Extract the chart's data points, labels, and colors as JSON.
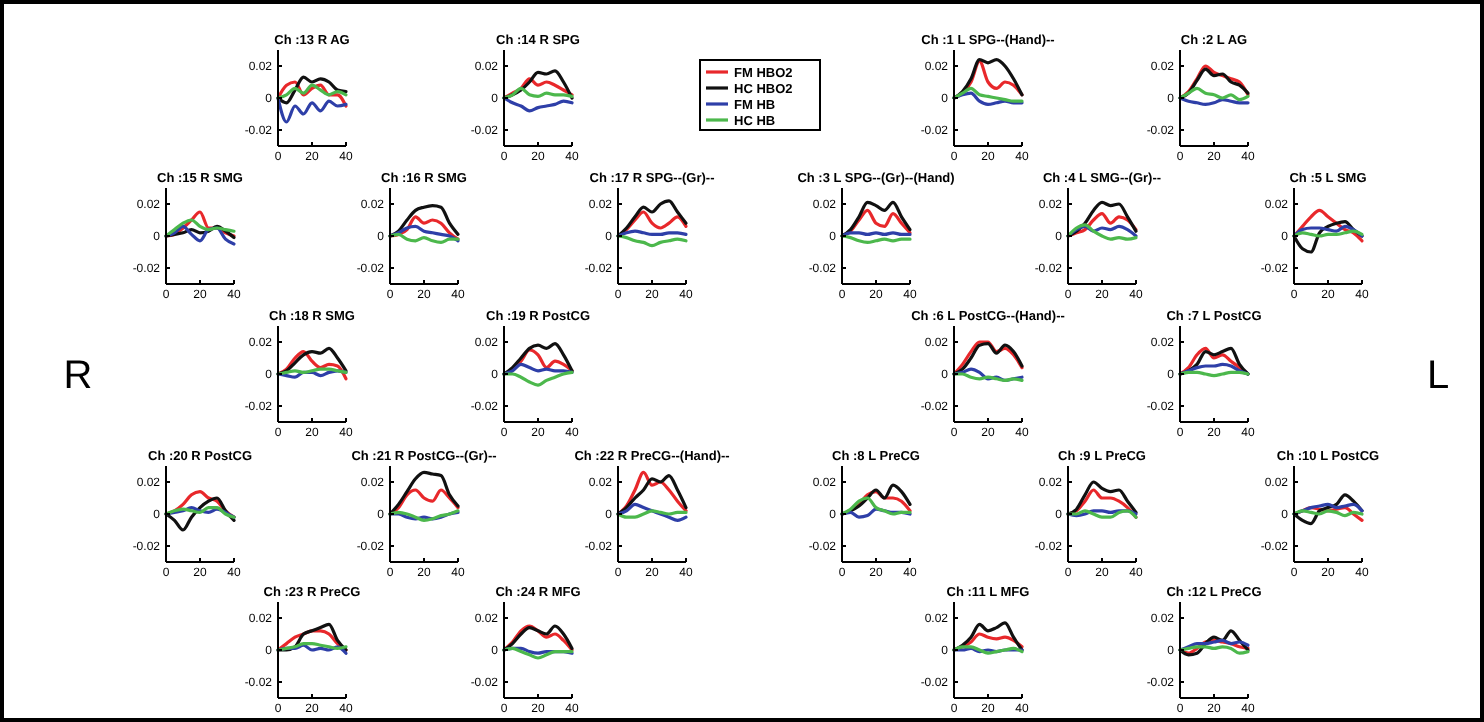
{
  "chart_data": [
    {
      "type": "line",
      "title": "Ch :13 R AG",
      "x": [
        0,
        5,
        10,
        15,
        20,
        25,
        30,
        35,
        40
      ],
      "xlim": [
        0,
        40
      ],
      "xticks": [
        0,
        20,
        40
      ],
      "ylim": [
        -0.03,
        0.03
      ],
      "yticks": [
        -0.02,
        0,
        0.02
      ],
      "series": [
        {
          "color": "#e8282b",
          "values": [
            0,
            0.008,
            0.01,
            0.002,
            0.006,
            0.008,
            0.002,
            0.002,
            -0.005
          ]
        },
        {
          "color": "#111111",
          "values": [
            0,
            -0.003,
            0.005,
            0.013,
            0.01,
            0.012,
            0.01,
            0.005,
            0.004
          ]
        },
        {
          "color": "#2e3fa8",
          "values": [
            0,
            -0.015,
            -0.005,
            -0.01,
            -0.003,
            -0.008,
            -0.002,
            -0.005,
            -0.004
          ]
        },
        {
          "color": "#4cb84c",
          "values": [
            0,
            0.002,
            0.006,
            0.003,
            0.008,
            0.005,
            0.002,
            0.004,
            0.002
          ]
        }
      ]
    },
    {
      "type": "line",
      "title": "Ch :14 R SPG",
      "x": [
        0,
        5,
        10,
        15,
        20,
        25,
        30,
        35,
        40
      ],
      "xlim": [
        0,
        40
      ],
      "xticks": [
        0,
        20,
        40
      ],
      "ylim": [
        -0.03,
        0.03
      ],
      "yticks": [
        -0.02,
        0,
        0.02
      ],
      "legend": "right",
      "series": [
        {
          "name": "FM HBO2",
          "color": "#e8282b",
          "values": [
            0,
            0.003,
            0.006,
            0.012,
            0.008,
            0.01,
            0.008,
            0.005,
            0.002
          ]
        },
        {
          "name": "HC HBO2",
          "color": "#111111",
          "values": [
            0,
            0.002,
            0.005,
            0.01,
            0.016,
            0.015,
            0.017,
            0.01,
            0
          ]
        },
        {
          "name": "FM HB",
          "color": "#2e3fa8",
          "values": [
            0,
            -0.003,
            -0.005,
            -0.008,
            -0.006,
            -0.005,
            -0.004,
            -0.002,
            -0.003
          ]
        },
        {
          "name": "HC HB",
          "color": "#4cb84c",
          "values": [
            0,
            0.002,
            0.006,
            0.002,
            0.001,
            0.003,
            0.002,
            0.002,
            0.001
          ]
        }
      ]
    },
    {
      "type": "line",
      "title": "Ch :1 L SPG--(Hand)--",
      "x": [
        0,
        5,
        10,
        15,
        20,
        25,
        30,
        35,
        40
      ],
      "xlim": [
        0,
        40
      ],
      "xticks": [
        0,
        20,
        40
      ],
      "ylim": [
        -0.03,
        0.03
      ],
      "yticks": [
        -0.02,
        0,
        0.02
      ],
      "series": [
        {
          "color": "#e8282b",
          "values": [
            0,
            0.003,
            0.01,
            0.023,
            0.01,
            0.006,
            0.01,
            0.008,
            0.002
          ]
        },
        {
          "color": "#111111",
          "values": [
            0,
            0.004,
            0.012,
            0.024,
            0.022,
            0.024,
            0.02,
            0.012,
            0.002
          ]
        },
        {
          "color": "#2e3fa8",
          "values": [
            0,
            0.002,
            0.003,
            -0.002,
            -0.004,
            -0.003,
            -0.002,
            -0.003,
            -0.003
          ]
        },
        {
          "color": "#4cb84c",
          "values": [
            0,
            0.003,
            0.006,
            0.002,
            0.001,
            0,
            -0.001,
            -0.002,
            -0.002
          ]
        }
      ]
    },
    {
      "type": "line",
      "title": "Ch :2 L AG",
      "x": [
        0,
        5,
        10,
        15,
        20,
        25,
        30,
        35,
        40
      ],
      "xlim": [
        0,
        40
      ],
      "xticks": [
        0,
        20,
        40
      ],
      "ylim": [
        -0.03,
        0.03
      ],
      "yticks": [
        -0.02,
        0,
        0.02
      ],
      "series": [
        {
          "color": "#e8282b",
          "values": [
            0,
            0.004,
            0.012,
            0.02,
            0.016,
            0.014,
            0.012,
            0.01,
            0.002
          ]
        },
        {
          "color": "#111111",
          "values": [
            0,
            0.003,
            0.011,
            0.018,
            0.014,
            0.015,
            0.01,
            0.008,
            0.003
          ]
        },
        {
          "color": "#2e3fa8",
          "values": [
            0,
            -0.002,
            -0.003,
            -0.004,
            -0.003,
            -0.001,
            -0.002,
            -0.003,
            -0.003
          ]
        },
        {
          "color": "#4cb84c",
          "values": [
            0,
            0.003,
            0.006,
            0.003,
            0.002,
            0,
            0.002,
            -0.001,
            0.001
          ]
        }
      ]
    },
    {
      "type": "line",
      "title": "Ch :15 R SMG",
      "x": [
        0,
        5,
        10,
        15,
        20,
        25,
        30,
        35,
        40
      ],
      "xlim": [
        0,
        40
      ],
      "xticks": [
        0,
        20,
        40
      ],
      "ylim": [
        -0.03,
        0.03
      ],
      "yticks": [
        -0.02,
        0,
        0.02
      ],
      "series": [
        {
          "color": "#e8282b",
          "values": [
            0,
            0.001,
            0.005,
            0.01,
            0.015,
            0.005,
            0.005,
            0.002,
            0
          ]
        },
        {
          "color": "#111111",
          "values": [
            0,
            0.001,
            0.002,
            0.004,
            0.002,
            0.003,
            0.006,
            0.003,
            -0.001
          ]
        },
        {
          "color": "#2e3fa8",
          "values": [
            0,
            0.002,
            0.006,
            0.001,
            -0.003,
            0.004,
            0.005,
            -0.002,
            -0.005
          ]
        },
        {
          "color": "#4cb84c",
          "values": [
            0,
            0.004,
            0.008,
            0.01,
            0.006,
            0.004,
            0.005,
            0.004,
            0.003
          ]
        }
      ]
    },
    {
      "type": "line",
      "title": "Ch :16 R SMG",
      "x": [
        0,
        5,
        10,
        15,
        20,
        25,
        30,
        35,
        40
      ],
      "xlim": [
        0,
        40
      ],
      "xticks": [
        0,
        20,
        40
      ],
      "ylim": [
        -0.03,
        0.03
      ],
      "yticks": [
        -0.02,
        0,
        0.02
      ],
      "series": [
        {
          "color": "#e8282b",
          "values": [
            0,
            0.001,
            0.004,
            0.012,
            0.008,
            0.01,
            0.008,
            0.002,
            -0.002
          ]
        },
        {
          "color": "#111111",
          "values": [
            0,
            0.003,
            0.01,
            0.016,
            0.018,
            0.019,
            0.018,
            0.008,
            0.001
          ]
        },
        {
          "color": "#2e3fa8",
          "values": [
            0,
            0.002,
            0.005,
            0.006,
            0.003,
            0.002,
            0.001,
            0,
            -0.003
          ]
        },
        {
          "color": "#4cb84c",
          "values": [
            0,
            0.001,
            -0.002,
            -0.003,
            -0.001,
            -0.003,
            -0.004,
            -0.002,
            -0.002
          ]
        }
      ]
    },
    {
      "type": "line",
      "title": "Ch :17 R SPG--(Gr)--",
      "x": [
        0,
        5,
        10,
        15,
        20,
        25,
        30,
        35,
        40
      ],
      "xlim": [
        0,
        40
      ],
      "xticks": [
        0,
        20,
        40
      ],
      "ylim": [
        -0.03,
        0.03
      ],
      "yticks": [
        -0.02,
        0,
        0.02
      ],
      "series": [
        {
          "color": "#e8282b",
          "values": [
            0,
            0.004,
            0.01,
            0.015,
            0.008,
            0.005,
            0.008,
            0.012,
            0.006
          ]
        },
        {
          "color": "#111111",
          "values": [
            0,
            0.005,
            0.012,
            0.018,
            0.015,
            0.02,
            0.022,
            0.015,
            0.008
          ]
        },
        {
          "color": "#2e3fa8",
          "values": [
            0,
            0.002,
            0.003,
            0.002,
            0.001,
            0.001,
            0.002,
            0.002,
            0.001
          ]
        },
        {
          "color": "#4cb84c",
          "values": [
            0,
            -0.001,
            -0.003,
            -0.004,
            -0.006,
            -0.004,
            -0.003,
            -0.002,
            -0.003
          ]
        }
      ]
    },
    {
      "type": "line",
      "title": "Ch :3 L SPG--(Gr)--(Hand)",
      "x": [
        0,
        5,
        10,
        15,
        20,
        25,
        30,
        35,
        40
      ],
      "xlim": [
        0,
        40
      ],
      "xticks": [
        0,
        20,
        40
      ],
      "ylim": [
        -0.03,
        0.03
      ],
      "yticks": [
        -0.02,
        0,
        0.02
      ],
      "series": [
        {
          "color": "#e8282b",
          "values": [
            0,
            0.003,
            0.01,
            0.016,
            0.008,
            0.006,
            0.014,
            0.008,
            0.002
          ]
        },
        {
          "color": "#111111",
          "values": [
            0,
            0.004,
            0.012,
            0.021,
            0.019,
            0.016,
            0.021,
            0.012,
            0.004
          ]
        },
        {
          "color": "#2e3fa8",
          "values": [
            0,
            0.002,
            0.002,
            0.001,
            0.002,
            0.001,
            0.002,
            0.001,
            0.001
          ]
        },
        {
          "color": "#4cb84c",
          "values": [
            0,
            -0.001,
            -0.003,
            -0.004,
            -0.003,
            -0.002,
            -0.003,
            -0.002,
            -0.002
          ]
        }
      ]
    },
    {
      "type": "line",
      "title": "Ch :4 L SMG--(Gr)--",
      "x": [
        0,
        5,
        10,
        15,
        20,
        25,
        30,
        35,
        40
      ],
      "xlim": [
        0,
        40
      ],
      "xticks": [
        0,
        20,
        40
      ],
      "ylim": [
        -0.03,
        0.03
      ],
      "yticks": [
        -0.02,
        0,
        0.02
      ],
      "series": [
        {
          "color": "#e8282b",
          "values": [
            0,
            0.002,
            0.004,
            0.01,
            0.014,
            0.008,
            0.012,
            0.01,
            0.004
          ]
        },
        {
          "color": "#111111",
          "values": [
            0,
            0.003,
            0.008,
            0.016,
            0.021,
            0.019,
            0.02,
            0.012,
            0.003
          ]
        },
        {
          "color": "#2e3fa8",
          "values": [
            0,
            0.004,
            0.006,
            0.003,
            0.005,
            0.004,
            0.006,
            0.004,
            0
          ]
        },
        {
          "color": "#4cb84c",
          "values": [
            0,
            0.005,
            0.007,
            0.003,
            0,
            -0.002,
            -0.001,
            -0.002,
            -0.001
          ]
        }
      ]
    },
    {
      "type": "line",
      "title": "Ch :5 L SMG",
      "x": [
        0,
        5,
        10,
        15,
        20,
        25,
        30,
        35,
        40
      ],
      "xlim": [
        0,
        40
      ],
      "xticks": [
        0,
        20,
        40
      ],
      "ylim": [
        -0.03,
        0.03
      ],
      "yticks": [
        -0.02,
        0,
        0.02
      ],
      "series": [
        {
          "color": "#e8282b",
          "values": [
            0,
            0.006,
            0.012,
            0.016,
            0.012,
            0.008,
            0.004,
            0.002,
            -0.003
          ]
        },
        {
          "color": "#111111",
          "values": [
            0,
            -0.008,
            -0.01,
            0.002,
            0.006,
            0.008,
            0.009,
            0.004,
            0
          ]
        },
        {
          "color": "#2e3fa8",
          "values": [
            0,
            0.004,
            0.005,
            0.005,
            0.004,
            0.003,
            0.006,
            0.004,
            0
          ]
        },
        {
          "color": "#4cb84c",
          "values": [
            0,
            0.002,
            0.001,
            0,
            0.001,
            0.001,
            0.002,
            0.003,
            0.001
          ]
        }
      ]
    },
    {
      "type": "line",
      "title": "Ch :18 R SMG",
      "annotations": [
        "R"
      ],
      "x": [
        0,
        5,
        10,
        15,
        20,
        25,
        30,
        35,
        40
      ],
      "xlim": [
        0,
        40
      ],
      "xticks": [
        0,
        20,
        40
      ],
      "ylim": [
        -0.03,
        0.03
      ],
      "yticks": [
        -0.02,
        0,
        0.02
      ],
      "series": [
        {
          "color": "#e8282b",
          "values": [
            0,
            0.003,
            0.01,
            0.014,
            0.008,
            0.004,
            0.006,
            0.005,
            -0.003
          ]
        },
        {
          "color": "#111111",
          "values": [
            0,
            0.002,
            0.007,
            0.012,
            0.014,
            0.013,
            0.016,
            0.01,
            0.002
          ]
        },
        {
          "color": "#2e3fa8",
          "values": [
            0,
            -0.001,
            -0.002,
            0.001,
            0.001,
            -0.001,
            0.001,
            0.002,
            0.001
          ]
        },
        {
          "color": "#4cb84c",
          "values": [
            0,
            0.001,
            0.002,
            0.001,
            0.002,
            0.003,
            0.003,
            0.002,
            0.001
          ]
        }
      ]
    },
    {
      "type": "line",
      "title": "Ch :19 R PostCG",
      "x": [
        0,
        5,
        10,
        15,
        20,
        25,
        30,
        35,
        40
      ],
      "xlim": [
        0,
        40
      ],
      "xticks": [
        0,
        20,
        40
      ],
      "ylim": [
        -0.03,
        0.03
      ],
      "yticks": [
        -0.02,
        0,
        0.02
      ],
      "series": [
        {
          "color": "#e8282b",
          "values": [
            0,
            0.003,
            0.008,
            0.015,
            0.012,
            0.004,
            0.008,
            0.006,
            0.002
          ]
        },
        {
          "color": "#111111",
          "values": [
            0,
            0.004,
            0.01,
            0.016,
            0.018,
            0.016,
            0.019,
            0.012,
            0.002
          ]
        },
        {
          "color": "#2e3fa8",
          "values": [
            0,
            0.002,
            0.006,
            0.004,
            0.002,
            0.003,
            0.002,
            0.002,
            0.001
          ]
        },
        {
          "color": "#4cb84c",
          "values": [
            0,
            0,
            -0.002,
            -0.005,
            -0.007,
            -0.004,
            -0.002,
            0,
            0.001
          ]
        }
      ]
    },
    {
      "type": "line",
      "title": "Ch :6 L PostCG--(Hand)--",
      "x": [
        0,
        5,
        10,
        15,
        20,
        25,
        30,
        35,
        40
      ],
      "xlim": [
        0,
        40
      ],
      "xticks": [
        0,
        20,
        40
      ],
      "ylim": [
        -0.03,
        0.03
      ],
      "yticks": [
        -0.02,
        0,
        0.02
      ],
      "series": [
        {
          "color": "#e8282b",
          "values": [
            0,
            0.006,
            0.014,
            0.02,
            0.02,
            0.014,
            0.016,
            0.012,
            0.004
          ]
        },
        {
          "color": "#111111",
          "values": [
            0,
            0.003,
            0.01,
            0.018,
            0.019,
            0.013,
            0.018,
            0.014,
            0.005
          ]
        },
        {
          "color": "#2e3fa8",
          "values": [
            0,
            0.001,
            0.003,
            0.001,
            -0.003,
            -0.002,
            -0.004,
            -0.003,
            -0.002
          ]
        },
        {
          "color": "#4cb84c",
          "values": [
            0,
            0,
            -0.002,
            -0.003,
            -0.002,
            -0.003,
            -0.004,
            -0.003,
            -0.004
          ]
        }
      ]
    },
    {
      "type": "line",
      "title": "Ch :7 L PostCG",
      "annotations": [
        "L"
      ],
      "x": [
        0,
        5,
        10,
        15,
        20,
        25,
        30,
        35,
        40
      ],
      "xlim": [
        0,
        40
      ],
      "xticks": [
        0,
        20,
        40
      ],
      "ylim": [
        -0.03,
        0.03
      ],
      "yticks": [
        -0.02,
        0,
        0.02
      ],
      "series": [
        {
          "color": "#e8282b",
          "values": [
            0,
            0.004,
            0.012,
            0.016,
            0.01,
            0.012,
            0.008,
            0.004,
            0
          ]
        },
        {
          "color": "#111111",
          "values": [
            0,
            0.002,
            0.006,
            0.014,
            0.012,
            0.014,
            0.016,
            0.006,
            0
          ]
        },
        {
          "color": "#2e3fa8",
          "values": [
            0,
            0.002,
            0.004,
            0.005,
            0.005,
            0.006,
            0.005,
            0.002,
            0
          ]
        },
        {
          "color": "#4cb84c",
          "values": [
            0,
            0.001,
            0.001,
            0,
            -0.001,
            0,
            0.001,
            0.001,
            0
          ]
        }
      ]
    },
    {
      "type": "line",
      "title": "Ch :20 R PostCG",
      "x": [
        0,
        5,
        10,
        15,
        20,
        25,
        30,
        35,
        40
      ],
      "xlim": [
        0,
        40
      ],
      "xticks": [
        0,
        20,
        40
      ],
      "ylim": [
        -0.03,
        0.03
      ],
      "yticks": [
        -0.02,
        0,
        0.02
      ],
      "series": [
        {
          "color": "#e8282b",
          "values": [
            0,
            0.002,
            0.006,
            0.012,
            0.014,
            0.01,
            0.008,
            0.002,
            -0.002
          ]
        },
        {
          "color": "#111111",
          "values": [
            0,
            -0.004,
            -0.01,
            -0.002,
            0.004,
            0.008,
            0.01,
            0.002,
            -0.004
          ]
        },
        {
          "color": "#2e3fa8",
          "values": [
            0,
            0.001,
            0.002,
            0.004,
            0.002,
            0.001,
            0.003,
            0.001,
            -0.002
          ]
        },
        {
          "color": "#4cb84c",
          "values": [
            0,
            0.002,
            0.003,
            0.002,
            0.001,
            0.004,
            0.004,
            0,
            -0.002
          ]
        }
      ]
    },
    {
      "type": "line",
      "title": "Ch :21 R PostCG--(Gr)--",
      "x": [
        0,
        5,
        10,
        15,
        20,
        25,
        30,
        35,
        40
      ],
      "xlim": [
        0,
        40
      ],
      "xticks": [
        0,
        20,
        40
      ],
      "ylim": [
        -0.03,
        0.03
      ],
      "yticks": [
        -0.02,
        0,
        0.02
      ],
      "series": [
        {
          "color": "#e8282b",
          "values": [
            0,
            0.004,
            0.012,
            0.015,
            0.01,
            0.008,
            0.015,
            0.01,
            0.004
          ]
        },
        {
          "color": "#111111",
          "values": [
            0,
            0.006,
            0.014,
            0.022,
            0.026,
            0.025,
            0.024,
            0.012,
            0.005
          ]
        },
        {
          "color": "#2e3fa8",
          "values": [
            0,
            0,
            -0.002,
            -0.003,
            -0.002,
            -0.003,
            -0.002,
            0,
            0.001
          ]
        },
        {
          "color": "#4cb84c",
          "values": [
            0,
            0.001,
            0,
            -0.002,
            -0.004,
            -0.003,
            -0.001,
            0,
            0.002
          ]
        }
      ]
    },
    {
      "type": "line",
      "title": "Ch :22 R PreCG--(Hand)--",
      "x": [
        0,
        5,
        10,
        15,
        20,
        25,
        30,
        35,
        40
      ],
      "xlim": [
        0,
        40
      ],
      "xticks": [
        0,
        20,
        40
      ],
      "ylim": [
        -0.03,
        0.03
      ],
      "yticks": [
        -0.02,
        0,
        0.02
      ],
      "series": [
        {
          "color": "#e8282b",
          "values": [
            0,
            0.005,
            0.015,
            0.026,
            0.018,
            0.02,
            0.015,
            0.008,
            0.002
          ]
        },
        {
          "color": "#111111",
          "values": [
            0,
            0.004,
            0.01,
            0.015,
            0.022,
            0.02,
            0.024,
            0.015,
            0.004
          ]
        },
        {
          "color": "#2e3fa8",
          "values": [
            0,
            0.002,
            0.006,
            0.004,
            0.002,
            0,
            -0.002,
            -0.004,
            -0.002
          ]
        },
        {
          "color": "#4cb84c",
          "values": [
            0,
            -0.002,
            -0.002,
            0,
            0.002,
            0.001,
            0,
            0.001,
            0.001
          ]
        }
      ]
    },
    {
      "type": "line",
      "title": "Ch :8 L PreCG",
      "x": [
        0,
        5,
        10,
        15,
        20,
        25,
        30,
        35,
        40
      ],
      "xlim": [
        0,
        40
      ],
      "xticks": [
        0,
        20,
        40
      ],
      "ylim": [
        -0.03,
        0.03
      ],
      "yticks": [
        -0.02,
        0,
        0.02
      ],
      "series": [
        {
          "color": "#e8282b",
          "values": [
            0,
            0.002,
            0.006,
            0.012,
            0.014,
            0.01,
            0.01,
            0.008,
            0.002
          ]
        },
        {
          "color": "#111111",
          "values": [
            0,
            0.002,
            0.005,
            0.01,
            0.015,
            0.01,
            0.018,
            0.014,
            0.006
          ]
        },
        {
          "color": "#2e3fa8",
          "values": [
            0,
            0.001,
            -0.002,
            -0.001,
            0.003,
            0.002,
            0.001,
            0.001,
            0
          ]
        },
        {
          "color": "#4cb84c",
          "values": [
            0,
            0.003,
            0.008,
            0.01,
            0.004,
            0.002,
            0,
            0.001,
            0.001
          ]
        }
      ]
    },
    {
      "type": "line",
      "title": "Ch :9 L PreCG",
      "x": [
        0,
        5,
        10,
        15,
        20,
        25,
        30,
        35,
        40
      ],
      "xlim": [
        0,
        40
      ],
      "xticks": [
        0,
        20,
        40
      ],
      "ylim": [
        -0.03,
        0.03
      ],
      "yticks": [
        -0.02,
        0,
        0.02
      ],
      "series": [
        {
          "color": "#e8282b",
          "values": [
            0,
            0.002,
            0.008,
            0.015,
            0.01,
            0.01,
            0.008,
            0.004,
            -0.002
          ]
        },
        {
          "color": "#111111",
          "values": [
            0,
            0.003,
            0.012,
            0.02,
            0.016,
            0.014,
            0.015,
            0.008,
            0.001
          ]
        },
        {
          "color": "#2e3fa8",
          "values": [
            0,
            -0.001,
            0,
            0.002,
            0.002,
            0.001,
            0.002,
            0.002,
            0
          ]
        },
        {
          "color": "#4cb84c",
          "values": [
            0,
            0,
            0.002,
            0,
            -0.002,
            -0.002,
            0.001,
            0.002,
            -0.002
          ]
        }
      ]
    },
    {
      "type": "line",
      "title": "Ch :10 L PostCG",
      "x": [
        0,
        5,
        10,
        15,
        20,
        25,
        30,
        35,
        40
      ],
      "xlim": [
        0,
        40
      ],
      "xticks": [
        0,
        20,
        40
      ],
      "ylim": [
        -0.03,
        0.03
      ],
      "yticks": [
        -0.02,
        0,
        0.02
      ],
      "series": [
        {
          "color": "#e8282b",
          "values": [
            0,
            0.002,
            0.004,
            0.003,
            0.002,
            0.003,
            0.004,
            0,
            -0.004
          ]
        },
        {
          "color": "#111111",
          "values": [
            0,
            -0.004,
            -0.006,
            0.002,
            0.004,
            0.006,
            0.012,
            0.008,
            0.002
          ]
        },
        {
          "color": "#2e3fa8",
          "values": [
            0,
            0.002,
            0.004,
            0.005,
            0.006,
            0.004,
            0.005,
            0.006,
            0.002
          ]
        },
        {
          "color": "#4cb84c",
          "values": [
            0,
            0.002,
            0.001,
            0,
            0.002,
            0.001,
            -0.001,
            0.001,
            0
          ]
        }
      ]
    },
    {
      "type": "line",
      "title": "Ch :23 R PreCG",
      "x": [
        0,
        5,
        10,
        15,
        20,
        25,
        30,
        35,
        40
      ],
      "xlim": [
        0,
        40
      ],
      "xticks": [
        0,
        20,
        40
      ],
      "ylim": [
        -0.03,
        0.03
      ],
      "yticks": [
        -0.02,
        0,
        0.02
      ],
      "series": [
        {
          "color": "#e8282b",
          "values": [
            0,
            0.004,
            0.008,
            0.01,
            0.012,
            0.012,
            0.01,
            0.004,
            0
          ]
        },
        {
          "color": "#111111",
          "values": [
            0,
            0,
            0.002,
            0.01,
            0.012,
            0.014,
            0.016,
            0.006,
            0
          ]
        },
        {
          "color": "#2e3fa8",
          "values": [
            0,
            0.001,
            0.001,
            0.003,
            0,
            0.001,
            0,
            0.002,
            -0.002
          ]
        },
        {
          "color": "#4cb84c",
          "values": [
            0,
            0.001,
            0.002,
            0.004,
            0.004,
            0.003,
            0.002,
            0.001,
            0.002
          ]
        }
      ]
    },
    {
      "type": "line",
      "title": "Ch :24 R MFG",
      "x": [
        0,
        5,
        10,
        15,
        20,
        25,
        30,
        35,
        40
      ],
      "xlim": [
        0,
        40
      ],
      "xticks": [
        0,
        20,
        40
      ],
      "ylim": [
        -0.03,
        0.03
      ],
      "yticks": [
        -0.02,
        0,
        0.02
      ],
      "series": [
        {
          "color": "#e8282b",
          "values": [
            0,
            0.005,
            0.012,
            0.015,
            0.012,
            0.008,
            0.01,
            0.006,
            0
          ]
        },
        {
          "color": "#111111",
          "values": [
            0,
            0.004,
            0.01,
            0.014,
            0.012,
            0.01,
            0.015,
            0.01,
            0.001
          ]
        },
        {
          "color": "#2e3fa8",
          "values": [
            0,
            0.001,
            0.001,
            -0.001,
            -0.002,
            -0.001,
            -0.001,
            -0.001,
            -0.002
          ]
        },
        {
          "color": "#4cb84c",
          "values": [
            0,
            0.001,
            -0.001,
            -0.003,
            -0.005,
            -0.003,
            -0.001,
            -0.001,
            -0.001
          ]
        }
      ]
    },
    {
      "type": "line",
      "title": "Ch :11 L MFG",
      "x": [
        0,
        5,
        10,
        15,
        20,
        25,
        30,
        35,
        40
      ],
      "xlim": [
        0,
        40
      ],
      "xticks": [
        0,
        20,
        40
      ],
      "ylim": [
        -0.03,
        0.03
      ],
      "yticks": [
        -0.02,
        0,
        0.02
      ],
      "series": [
        {
          "color": "#e8282b",
          "values": [
            0,
            0.002,
            0.005,
            0.01,
            0.008,
            0.007,
            0.008,
            0.006,
            0.002
          ]
        },
        {
          "color": "#111111",
          "values": [
            0,
            0.003,
            0.008,
            0.016,
            0.012,
            0.014,
            0.017,
            0.008,
            0
          ]
        },
        {
          "color": "#2e3fa8",
          "values": [
            0,
            0,
            0.001,
            -0.001,
            0,
            -0.001,
            0,
            0,
            0
          ]
        },
        {
          "color": "#4cb84c",
          "values": [
            0,
            0.002,
            0.002,
            0,
            -0.002,
            -0.001,
            0,
            0.001,
            -0.001
          ]
        }
      ]
    },
    {
      "type": "line",
      "title": "Ch :12 L PreCG",
      "x": [
        0,
        5,
        10,
        15,
        20,
        25,
        30,
        35,
        40
      ],
      "xlim": [
        0,
        40
      ],
      "xticks": [
        0,
        20,
        40
      ],
      "ylim": [
        -0.03,
        0.03
      ],
      "yticks": [
        -0.02,
        0,
        0.02
      ],
      "series": [
        {
          "color": "#e8282b",
          "values": [
            0,
            -0.002,
            0.001,
            0.005,
            0.006,
            0.005,
            0.004,
            0.002,
            0.001
          ]
        },
        {
          "color": "#111111",
          "values": [
            0,
            -0.003,
            -0.002,
            0.004,
            0.008,
            0.006,
            0.012,
            0.006,
            0
          ]
        },
        {
          "color": "#2e3fa8",
          "values": [
            0,
            0.002,
            0.004,
            0.004,
            0.005,
            0.006,
            0.004,
            0.005,
            0.003
          ]
        },
        {
          "color": "#4cb84c",
          "values": [
            0,
            0.001,
            0.002,
            0.002,
            0.001,
            0.002,
            0.001,
            -0.002,
            -0.001
          ]
        }
      ]
    }
  ]
}
